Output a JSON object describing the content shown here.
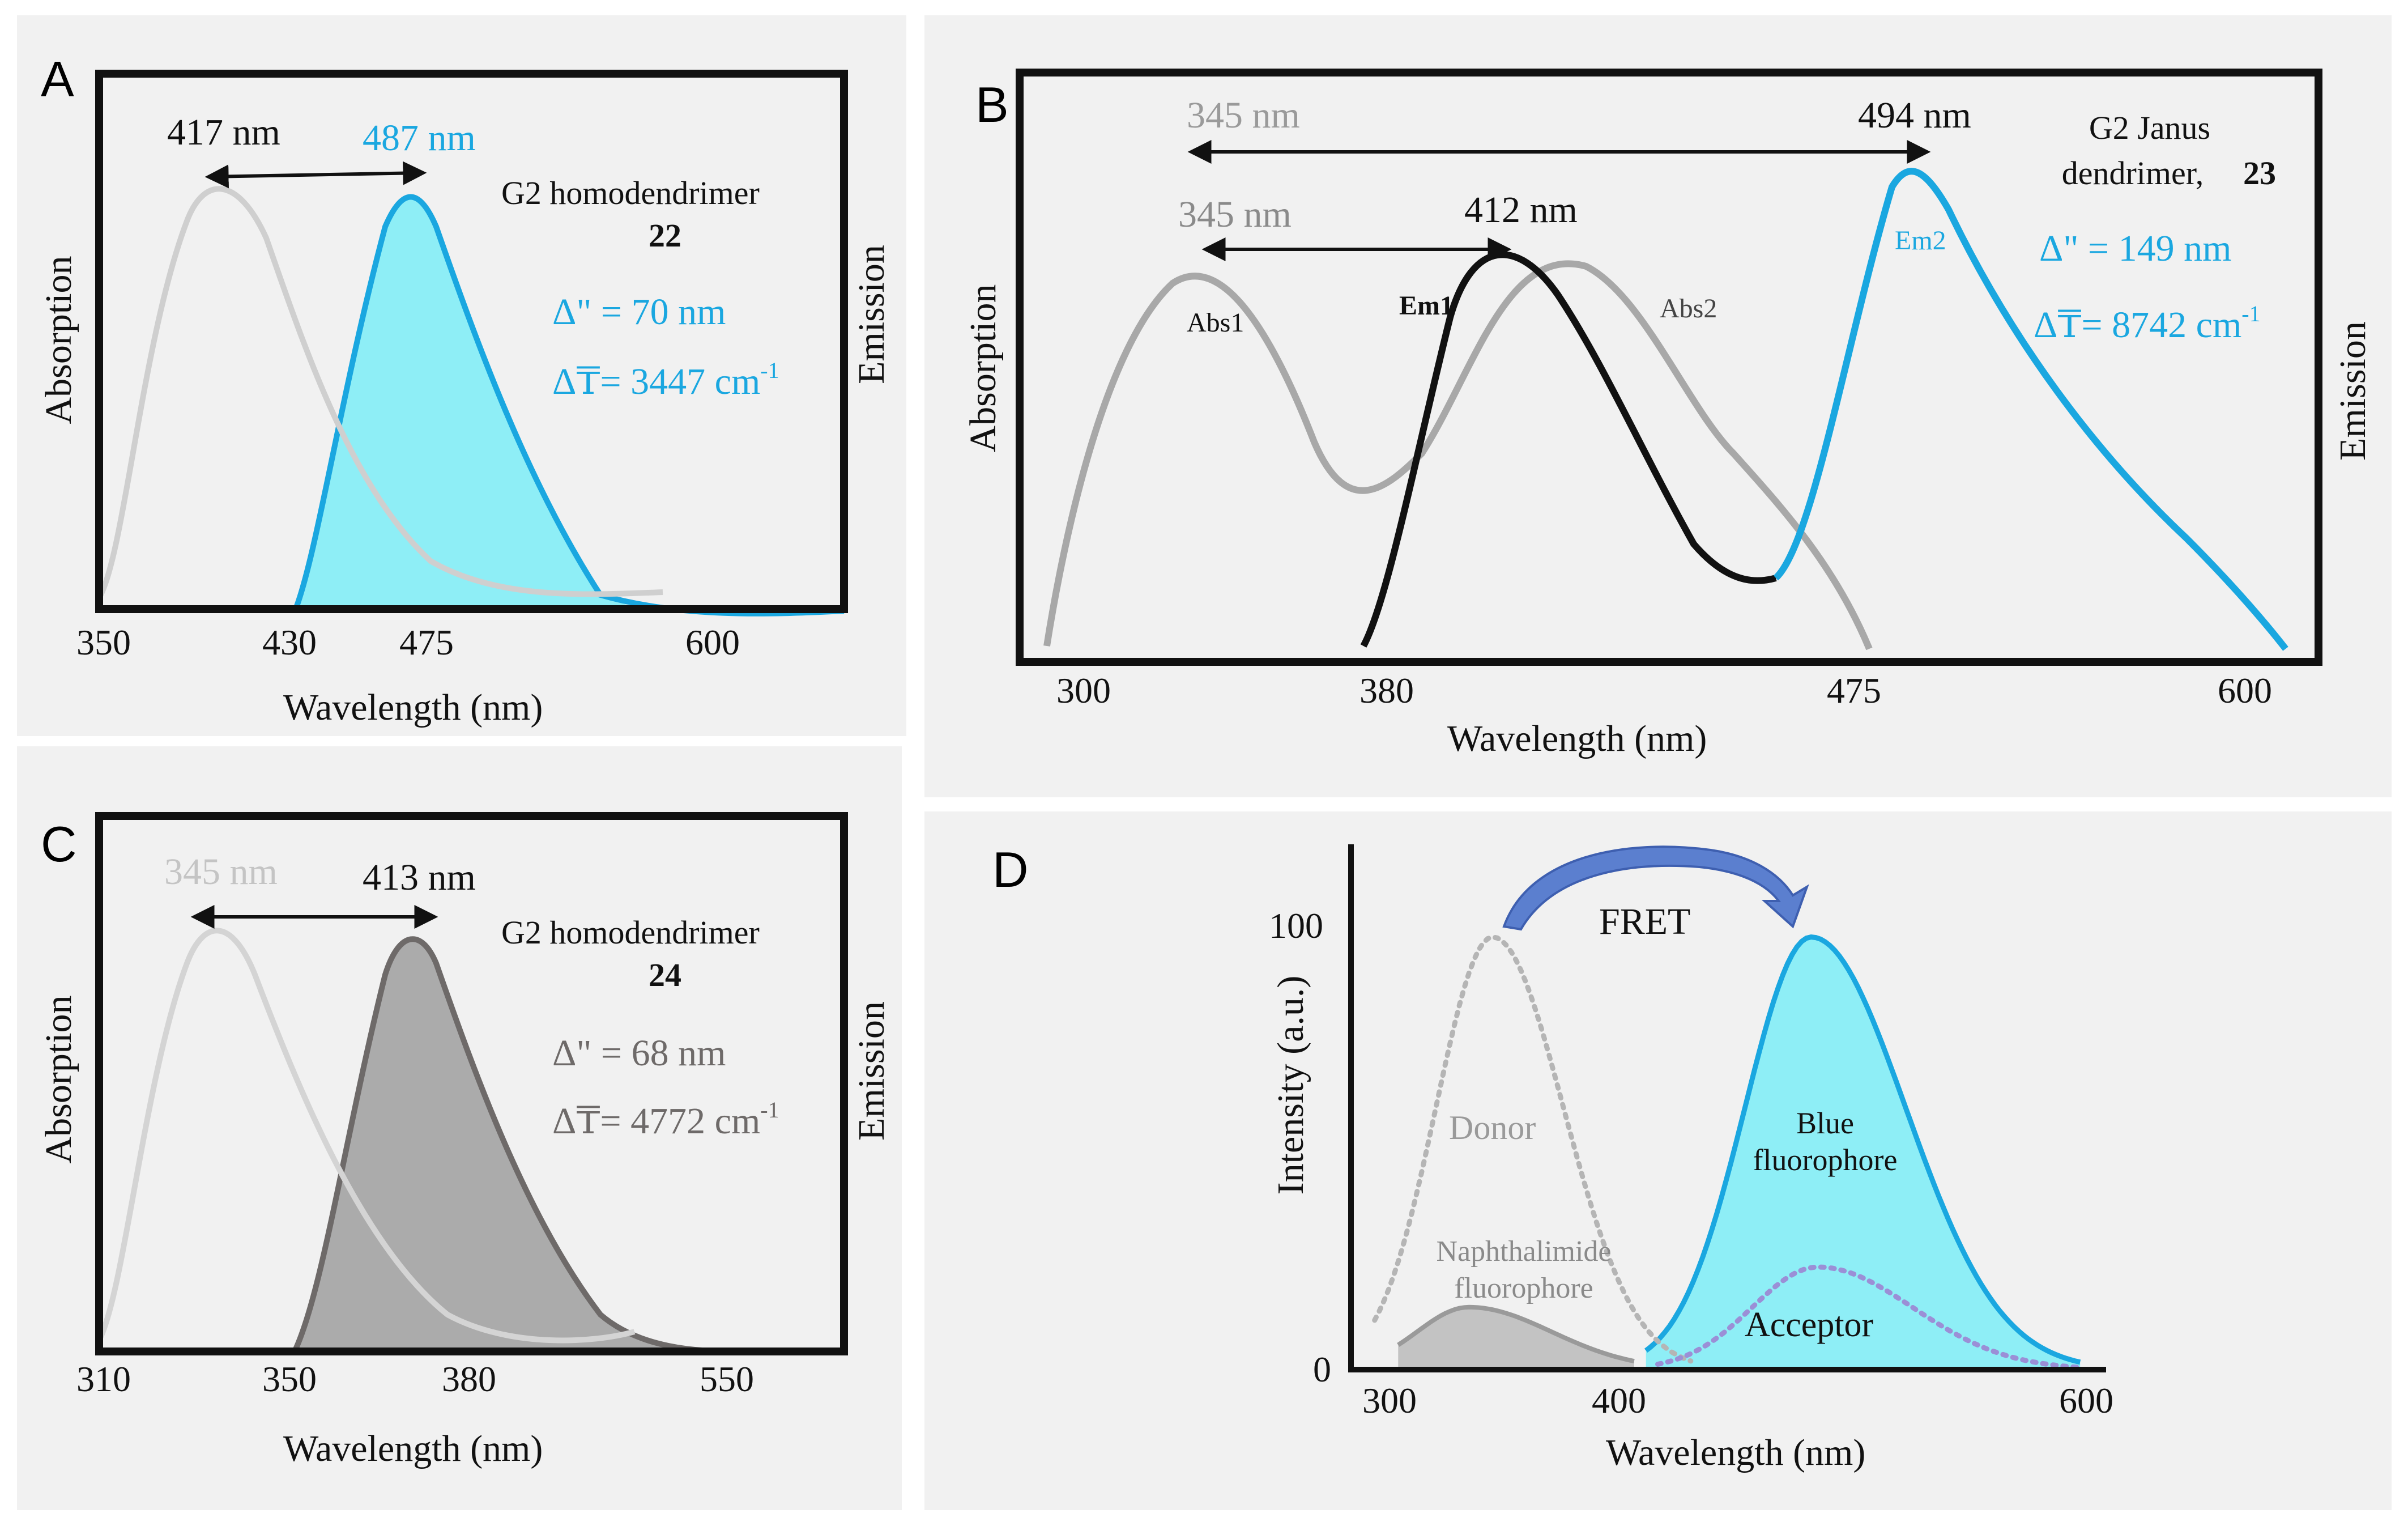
{
  "colors": {
    "cyan": "#1aa7e0",
    "cyan_fill": "#8eeef6",
    "light_grey": "#cfcfcf",
    "mid_grey": "#a8a8a8",
    "dark_grey": "#6e6a69",
    "grey_fill": "#ababab",
    "black": "#111111",
    "arrow_blue": "#4f74c8"
  },
  "chart_data": [
    {
      "panel": "A",
      "type": "line",
      "title": "G2 homodendrimer 22",
      "xlabel": "Wavelength (nm)",
      "ylabel_left": "Absorption",
      "ylabel_right": "Emission",
      "x_ticks": [
        "350",
        "430",
        "475",
        "600"
      ],
      "peaks": {
        "absorption": "417 nm",
        "emission": "487 nm"
      },
      "compound": {
        "name": "G2 homodendrimer",
        "number": "22"
      },
      "stokes_shift_nm": "Δ\" = 70 nm",
      "stokes_shift_cm": {
        "text": "Δ₸= 3447 cm",
        "sup": "-1"
      },
      "series": [
        {
          "name": "Absorption",
          "color": "#cfcfcf",
          "filled": false
        },
        {
          "name": "Emission",
          "color": "#1aa7e0",
          "filled": true
        }
      ]
    },
    {
      "panel": "B",
      "type": "line",
      "xlabel": "Wavelength (nm)",
      "ylabel_left": "Absorption",
      "ylabel_right": "Emission",
      "x_ticks": [
        "300",
        "380",
        "475",
        "600"
      ],
      "top_arrow": {
        "from": "345 nm",
        "to": "494 nm"
      },
      "inner_arrow": {
        "from": "345 nm",
        "to": "412 nm"
      },
      "compound": {
        "line1": "G2 Janus",
        "line2": "dendrimer,",
        "number": "23"
      },
      "stokes_shift_nm": "Δ\" = 149 nm",
      "stokes_shift_cm": {
        "text": "Δ₸= 8742 cm",
        "sup": "-1"
      },
      "series": [
        {
          "name": "Abs1",
          "color": "#a8a8a8"
        },
        {
          "name": "Abs2",
          "color": "#a8a8a8"
        },
        {
          "name": "Em1",
          "color": "#111111"
        },
        {
          "name": "Em2",
          "color": "#1aa7e0"
        }
      ]
    },
    {
      "panel": "C",
      "type": "line",
      "title": "G2 homodendrimer 24",
      "xlabel": "Wavelength (nm)",
      "ylabel_left": "Absorption",
      "ylabel_right": "Emission",
      "x_ticks": [
        "310",
        "350",
        "380",
        "550"
      ],
      "peaks": {
        "absorption": "345 nm",
        "emission": "413 nm"
      },
      "compound": {
        "name": "G2 homodendrimer",
        "number": "24"
      },
      "stokes_shift_nm": "Δ\" = 68 nm",
      "stokes_shift_cm": {
        "text": "Δ₸= 4772 cm",
        "sup": "-1"
      },
      "series": [
        {
          "name": "Absorption",
          "color": "#cfcfcf",
          "filled": false
        },
        {
          "name": "Emission",
          "color": "#6e6a69",
          "filled": true
        }
      ]
    },
    {
      "panel": "D",
      "type": "line",
      "xlabel": "Wavelength (nm)",
      "ylabel": "Intensity (a.u.)",
      "x_ticks": [
        "300",
        "400",
        "600"
      ],
      "y_ticks": [
        "0",
        "100"
      ],
      "xlim": [
        280,
        600
      ],
      "ylim": [
        0,
        115
      ],
      "arrow_label": "FRET",
      "labels": {
        "donor": "Donor",
        "naphthalimide_line1": "Naphthalimide",
        "naphthalimide_line2": "fluorophore",
        "blue_line1": "Blue",
        "blue_line2": "fluorophore",
        "acceptor": "Acceptor"
      },
      "series": [
        {
          "name": "Donor",
          "style": "dotted",
          "color": "#b5b5b5",
          "peak_x": 340,
          "peak_y": 97
        },
        {
          "name": "Naphthalimide fluorophore",
          "style": "filled",
          "color": "#ababab",
          "peak_x": 330,
          "peak_y": 14
        },
        {
          "name": "Blue fluorophore",
          "style": "filled",
          "color": "#1aa7e0",
          "peak_x": 475,
          "peak_y": 97
        },
        {
          "name": "Acceptor",
          "style": "dotted",
          "color": "#9b8fd6",
          "peak_x": 478,
          "peak_y": 23
        }
      ]
    }
  ],
  "panel_letters": [
    "A",
    "B",
    "C",
    "D"
  ]
}
